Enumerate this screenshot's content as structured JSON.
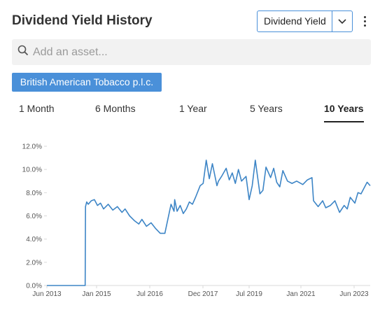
{
  "header": {
    "title": "Dividend Yield History"
  },
  "metric_select": {
    "value": "Dividend Yield"
  },
  "search": {
    "placeholder": "Add an asset..."
  },
  "asset_chip": {
    "label": "British American Tobacco p.l.c."
  },
  "tabs": [
    {
      "label": "1 Month"
    },
    {
      "label": "6 Months"
    },
    {
      "label": "1 Year"
    },
    {
      "label": "5 Years"
    },
    {
      "label": "10 Years",
      "active": true
    }
  ],
  "colors": {
    "accent": "#4a90d9",
    "line": "#3d85c6",
    "grid": "#d9d9d9"
  },
  "chart_data": {
    "type": "line",
    "title": "",
    "xlabel": "",
    "ylabel": "",
    "ylim": [
      0,
      12
    ],
    "xlim": [
      2013.45,
      2024.0
    ],
    "y_ticks": [
      "0.0%",
      "2.0%",
      "4.0%",
      "6.0%",
      "8.0%",
      "10.0%",
      "12.0%"
    ],
    "x_ticks": [
      "Jun 2013",
      "Jan 2015",
      "Jul 2016",
      "Dec 2017",
      "Jul 2019",
      "Jan 2021",
      "Jun 2023"
    ],
    "grid": true,
    "series": [
      {
        "x": [
          2013.45,
          2014.7,
          2014.71,
          2014.75,
          2014.8,
          2014.9,
          2015.0,
          2015.1,
          2015.2,
          2015.3,
          2015.45,
          2015.6,
          2015.75,
          2015.9,
          2016.0,
          2016.15,
          2016.3,
          2016.45,
          2016.55,
          2016.7,
          2016.85,
          2017.0,
          2017.15,
          2017.3,
          2017.5,
          2017.6,
          2017.62,
          2017.7,
          2017.8,
          2017.9,
          2018.0,
          2018.1,
          2018.2,
          2018.3,
          2018.45,
          2018.55,
          2018.65,
          2018.75,
          2018.85,
          2019.0,
          2019.05,
          2019.15,
          2019.3,
          2019.4,
          2019.5,
          2019.6,
          2019.7,
          2019.8,
          2019.95,
          2020.05,
          2020.15,
          2020.25,
          2020.4,
          2020.5,
          2020.6,
          2020.75,
          2020.85,
          2020.95,
          2021.05,
          2021.15,
          2021.3,
          2021.45,
          2021.6,
          2021.8,
          2021.95,
          2022.1,
          2022.15,
          2022.3,
          2022.45,
          2022.55,
          2022.7,
          2022.85,
          2023.0,
          2023.15,
          2023.25,
          2023.35,
          2023.5,
          2023.6,
          2023.7,
          2023.8,
          2023.9,
          2024.0
        ],
        "y": [
          0.0,
          0.0,
          6.8,
          7.2,
          7.0,
          7.3,
          7.4,
          6.9,
          7.1,
          6.6,
          7.0,
          6.5,
          6.8,
          6.3,
          6.6,
          6.0,
          5.6,
          5.3,
          5.7,
          5.1,
          5.4,
          4.9,
          4.5,
          4.5,
          7.0,
          6.4,
          7.4,
          6.4,
          6.9,
          6.2,
          6.6,
          7.2,
          7.0,
          7.6,
          8.6,
          8.8,
          10.8,
          9.2,
          10.5,
          8.6,
          9.0,
          9.4,
          10.1,
          9.1,
          9.7,
          8.8,
          10.0,
          9.0,
          9.4,
          7.4,
          8.6,
          10.8,
          7.9,
          8.2,
          10.2,
          9.3,
          10.1,
          8.9,
          8.5,
          9.9,
          9.0,
          8.8,
          9.0,
          8.7,
          9.1,
          9.3,
          7.3,
          6.8,
          7.3,
          6.7,
          6.9,
          7.3,
          6.3,
          6.9,
          6.6,
          7.6,
          7.1,
          8.0,
          7.9,
          8.4,
          8.9,
          8.6
        ]
      }
    ]
  }
}
